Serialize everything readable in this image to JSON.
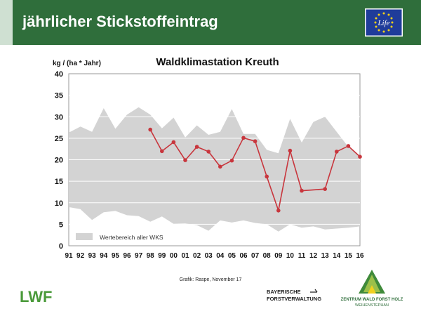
{
  "header": {
    "title": "jährlicher Stickstoffeintrag",
    "logo_text": "Life"
  },
  "chart_data": {
    "type": "area",
    "title": "Waldklimastation Kreuth",
    "ylabel": "kg / (ha * Jahr)",
    "xlabel": "",
    "ylim": [
      0,
      40
    ],
    "yticks": [
      0,
      5,
      10,
      15,
      20,
      25,
      30,
      35,
      40
    ],
    "grid": true,
    "legend_position": "bottom-left",
    "x_ticks": [
      "91",
      "92",
      "93",
      "94",
      "95",
      "96",
      "97",
      "98",
      "99",
      "00",
      "01",
      "02",
      "03",
      "04",
      "05",
      "06",
      "07",
      "08",
      "09",
      "10",
      "11",
      "12",
      "13",
      "14",
      "15",
      "16"
    ],
    "range_series": {
      "name": "Wertebereich aller WKS",
      "color": "#d3d3d3",
      "upper": [
        26.3,
        27.7,
        26.5,
        32.0,
        27.2,
        30.5,
        32.2,
        30.5,
        27.3,
        29.8,
        25.2,
        28.0,
        25.8,
        26.5,
        31.8,
        26.0,
        26.0,
        22.3,
        21.5,
        29.5,
        24.0,
        28.8,
        30.0,
        26.5,
        23.0,
        21.0
      ],
      "lower": [
        9.0,
        8.5,
        6.0,
        7.8,
        8.1,
        7.1,
        6.9,
        5.6,
        6.8,
        5.1,
        5.2,
        4.8,
        3.5,
        5.9,
        5.4,
        5.9,
        5.3,
        5.0,
        3.3,
        5.0,
        4.2,
        4.5,
        3.8,
        4.0,
        4.2,
        4.5
      ]
    },
    "series": [
      {
        "color": "#c8363d",
        "x": [
          "98",
          "99",
          "00",
          "01",
          "02",
          "03",
          "04",
          "05",
          "06",
          "07",
          "08",
          "09",
          "10",
          "11",
          "13",
          "14",
          "15",
          "16"
        ],
        "values": [
          27.0,
          22.0,
          24.1,
          19.9,
          23.0,
          21.9,
          18.4,
          19.8,
          25.1,
          24.3,
          16.1,
          8.2,
          22.1,
          12.8,
          13.2,
          21.9,
          23.2,
          20.7
        ]
      }
    ]
  },
  "footer": {
    "credit": "Grafik: Raspe, November 17",
    "lwf_logo": "LWF",
    "bayern_line1": "BAYERISCHE",
    "bayern_line2": "FORSTVERWALTUNG",
    "zentrum_line1": "ZENTRUM WALD FORST HOLZ",
    "zentrum_line2": "WEIHENSTEPHAN"
  }
}
